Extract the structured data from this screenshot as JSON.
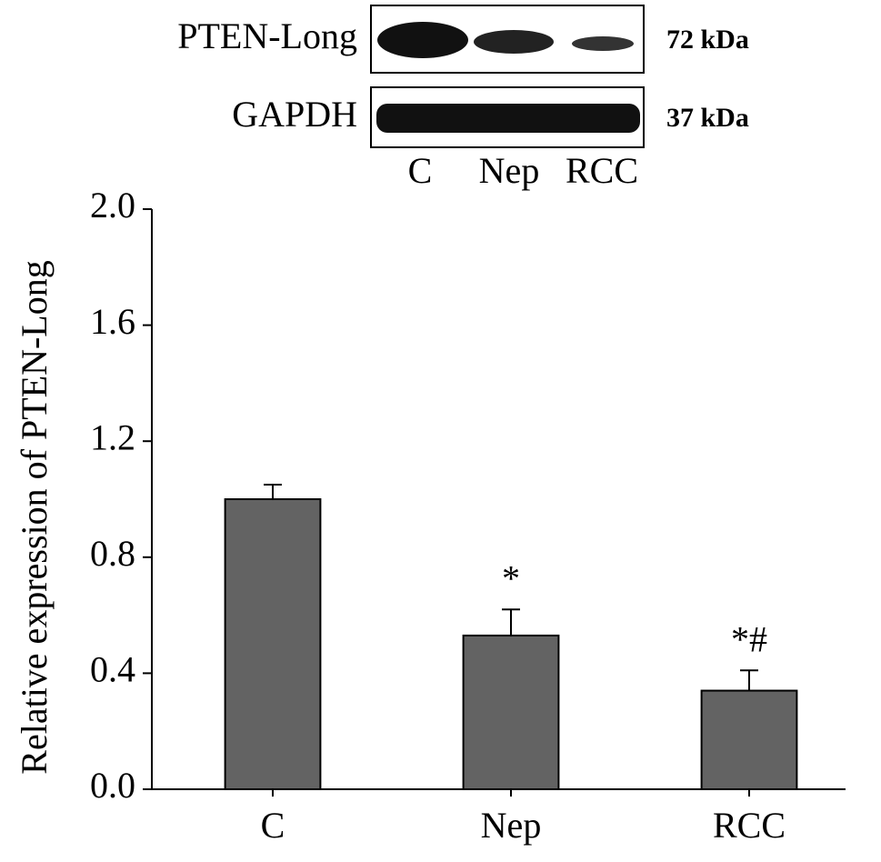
{
  "blot": {
    "rows": [
      {
        "label": "PTEN-Long",
        "size": "72 kDa"
      },
      {
        "label": "GAPDH",
        "size": "37 kDa"
      }
    ],
    "lanes": [
      "C",
      "Nep",
      "RCC"
    ]
  },
  "chart_data": {
    "type": "bar",
    "y_label": "Relative expression of PTEN-Long",
    "categories": [
      "C",
      "Nep",
      "RCC"
    ],
    "values": [
      1.0,
      0.53,
      0.34
    ],
    "errors": [
      0.05,
      0.09,
      0.07
    ],
    "color": "#636363",
    "annotations": [
      {
        "category": "Nep",
        "text": "*"
      },
      {
        "category": "RCC",
        "text": "*#"
      }
    ],
    "ylim": [
      0,
      2
    ],
    "yticks": [
      {
        "value": 0,
        "label": "0.0"
      },
      0.4,
      0.8,
      1.2,
      1.6,
      {
        "value": 2,
        "label": "2.0"
      }
    ]
  }
}
